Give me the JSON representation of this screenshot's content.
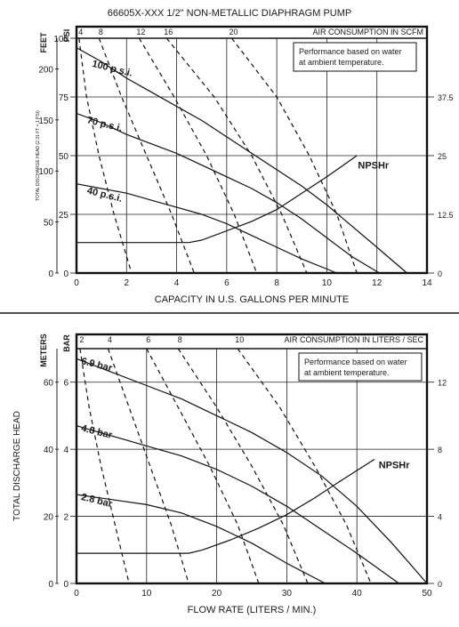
{
  "title": "66605X-XXX  1/2\" NON-METALLIC DIAPHRAGM PUMP",
  "chart_data": [
    {
      "type": "line",
      "name": "english-units",
      "xlabel": "CAPACITY IN U.S. GALLONS PER MINUTE",
      "xlim": [
        0,
        14
      ],
      "x_ticks": [
        "0",
        "2",
        "4",
        "6",
        "8",
        "10",
        "12",
        "14"
      ],
      "ylabel_left_outer": "FEET",
      "ylim_left_outer": [
        0,
        230
      ],
      "y_ticks_left_outer": [
        "0",
        "50",
        "100",
        "150",
        "200"
      ],
      "ylabel_left_inner": "PSI",
      "ylim_left_inner": [
        0,
        100
      ],
      "y_ticks_left_inner": [
        "0",
        "25",
        "50",
        "75",
        "100"
      ],
      "ylabel_vertical": "TOTAL DISCHARGE HEAD (2.31 FT = 1 PSI)",
      "y_ticks_right": [
        "0",
        "12.5",
        "25",
        "37.5"
      ],
      "ylim_right": [
        0,
        50
      ],
      "top_axis_label": "AIR CONSUMPTION IN SCFM",
      "top_ticks": [
        "4",
        "8",
        "12",
        "16",
        "20"
      ],
      "note": "Performance based on water at ambient temperature.",
      "series": [
        {
          "name": "100 p.s.i.",
          "x": [
            0,
            1,
            2,
            3,
            4,
            5,
            6,
            7,
            8,
            9,
            10,
            11,
            12,
            13.2
          ],
          "y": [
            96,
            90,
            83,
            77,
            71,
            65,
            58,
            51,
            44,
            37,
            29,
            20,
            11,
            0
          ]
        },
        {
          "name": "70 p.s.i.",
          "x": [
            0,
            1,
            2,
            3,
            4,
            5,
            6,
            7,
            8,
            9,
            10,
            11,
            12.1
          ],
          "y": [
            68,
            64,
            59,
            55,
            51,
            46,
            41,
            36,
            30,
            23,
            15,
            7,
            0
          ]
        },
        {
          "name": "40 p.s.i.",
          "x": [
            0,
            1,
            2,
            3,
            4,
            5,
            6,
            7,
            8,
            9,
            10.4
          ],
          "y": [
            38,
            36,
            34,
            31,
            28,
            25,
            21,
            16,
            11,
            6,
            0
          ]
        },
        {
          "name": "NPSHr",
          "x": [
            0,
            4.5,
            5,
            6,
            7,
            8,
            9,
            10,
            11.2
          ],
          "y": [
            13,
            13,
            14,
            18,
            22,
            27,
            34,
            41,
            50
          ]
        }
      ],
      "air_consumption_curves": [
        {
          "label": "4",
          "x": [
            0.1,
            0.4,
            0.9,
            1.5,
            2.2
          ],
          "y": [
            100,
            75,
            50,
            25,
            0
          ]
        },
        {
          "label": "8",
          "x": [
            0.9,
            1.8,
            2.8,
            3.8,
            4.7
          ],
          "y": [
            100,
            75,
            50,
            25,
            0
          ]
        },
        {
          "label": "12",
          "x": [
            2.5,
            3.9,
            5.2,
            6.3,
            7.2
          ],
          "y": [
            100,
            75,
            50,
            25,
            0
          ]
        },
        {
          "label": "16",
          "x": [
            3.6,
            5.5,
            7.0,
            8.2,
            9.2
          ],
          "y": [
            100,
            75,
            50,
            25,
            0
          ]
        },
        {
          "label": "20",
          "x": [
            6.2,
            8.0,
            9.3,
            10.4,
            11.2
          ],
          "y": [
            100,
            75,
            50,
            25,
            0
          ]
        }
      ]
    },
    {
      "type": "line",
      "name": "metric-units",
      "xlabel": "FLOW RATE (LITERS / MIN.)",
      "xlim": [
        0,
        50
      ],
      "x_ticks": [
        "0",
        "10",
        "20",
        "30",
        "40",
        "50"
      ],
      "ylabel_left_outer": "METERS",
      "ylim_left_outer": [
        0,
        70
      ],
      "y_ticks_left_outer": [
        "0",
        "20",
        "40",
        "60"
      ],
      "ylabel_left_inner": "BAR",
      "ylim_left_inner": [
        0,
        7
      ],
      "y_ticks_left_inner": [
        "0",
        "2",
        "4",
        "6"
      ],
      "ylabel_vertical": "TOTAL DISCHARGE HEAD",
      "y_ticks_right": [
        "0",
        "4",
        "8",
        "12"
      ],
      "ylim_right": [
        0,
        14
      ],
      "top_axis_label": "AIR CONSUMPTION IN LITERS / SEC",
      "top_ticks": [
        "2",
        "4",
        "6",
        "8",
        "10"
      ],
      "note": "Performance based on water at ambient temperature.",
      "series": [
        {
          "name": "6.9 bar",
          "x": [
            0,
            5,
            10,
            15,
            20,
            25,
            30,
            35,
            40,
            45,
            50
          ],
          "y": [
            6.7,
            6.3,
            5.9,
            5.5,
            5.0,
            4.5,
            3.9,
            3.2,
            2.3,
            1.2,
            0
          ]
        },
        {
          "name": "4.8 bar",
          "x": [
            0,
            5,
            10,
            15,
            20,
            25,
            30,
            35,
            40,
            46
          ],
          "y": [
            4.7,
            4.4,
            4.1,
            3.8,
            3.4,
            2.9,
            2.3,
            1.6,
            0.9,
            0
          ]
        },
        {
          "name": "2.8 bar",
          "x": [
            0,
            5,
            10,
            15,
            20,
            25,
            30,
            35.5
          ],
          "y": [
            2.65,
            2.5,
            2.35,
            2.1,
            1.7,
            1.2,
            0.6,
            0
          ]
        },
        {
          "name": "NPSHr",
          "x": [
            0,
            16,
            18,
            22,
            26,
            30,
            34,
            38,
            42.5
          ],
          "y": [
            0.9,
            0.9,
            1.0,
            1.3,
            1.65,
            2.05,
            2.55,
            3.1,
            3.7
          ]
        }
      ],
      "air_consumption_curves": [
        {
          "label": "2",
          "x": [
            0.5,
            1.8,
            3.5,
            5.5,
            7.5
          ],
          "y": [
            7,
            5.25,
            3.5,
            1.75,
            0
          ]
        },
        {
          "label": "4",
          "x": [
            4.5,
            7.5,
            10.5,
            13.5,
            16
          ],
          "y": [
            7,
            5.25,
            3.5,
            1.75,
            0
          ]
        },
        {
          "label": "6",
          "x": [
            10,
            14.5,
            19,
            23,
            26
          ],
          "y": [
            7,
            5.25,
            3.5,
            1.75,
            0
          ]
        },
        {
          "label": "8",
          "x": [
            14.5,
            20,
            25,
            29.5,
            33
          ],
          "y": [
            7,
            5.25,
            3.5,
            1.75,
            0
          ]
        },
        {
          "label": "10",
          "x": [
            23,
            29,
            34,
            38.5,
            42
          ],
          "y": [
            7,
            5.25,
            3.5,
            1.75,
            0
          ]
        }
      ]
    }
  ]
}
